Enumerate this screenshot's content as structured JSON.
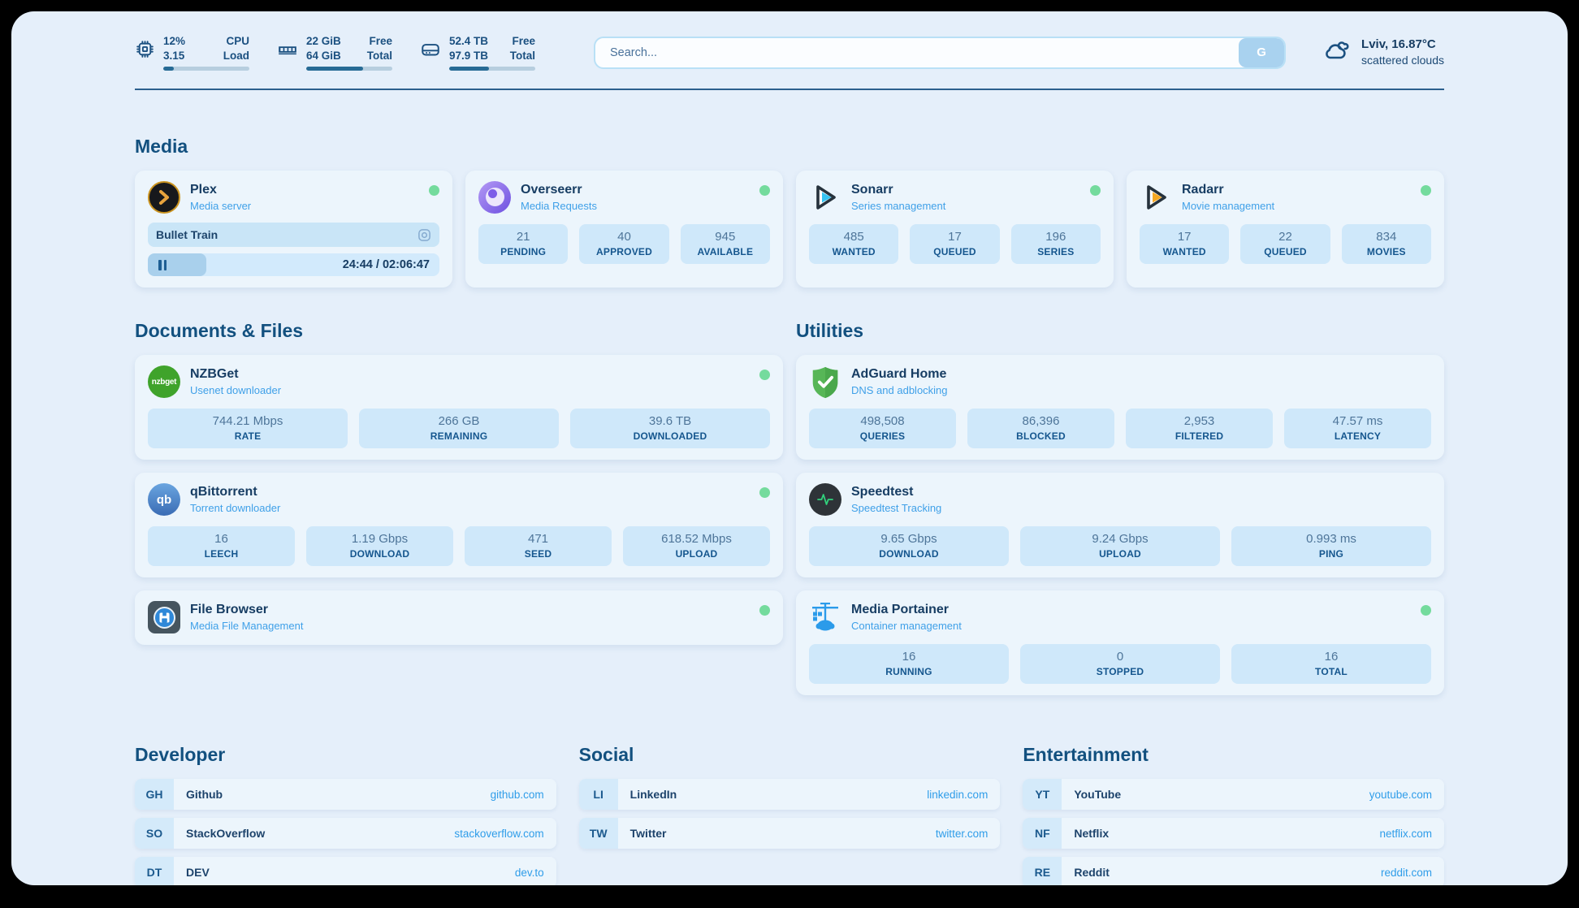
{
  "colors": {
    "status_online": "#74db9d",
    "link": "#2f9de9",
    "accent": "#2c6e9e",
    "plex": "#e8a33d",
    "overseerr": "#7c5ce8",
    "sonarr": "#36c3f1",
    "radarr": "#f6a823",
    "nzbget": "#3fa32b",
    "qbittorrent": "#4a7fc0",
    "adguard": "#57b657",
    "speedtest": "#31d17c",
    "portainer": "#2b9bea"
  },
  "header": {
    "cpu": {
      "values": [
        "12%",
        "3.15"
      ],
      "labels": [
        "CPU",
        "Load"
      ],
      "progress_pct": 12
    },
    "ram": {
      "values": [
        "22 GiB",
        "64 GiB"
      ],
      "labels": [
        "Free",
        "Total"
      ],
      "progress_pct": 66
    },
    "disk": {
      "values": [
        "52.4 TB",
        "97.9 TB"
      ],
      "labels": [
        "Free",
        "Total"
      ],
      "progress_pct": 46
    },
    "search": {
      "placeholder": "Search...",
      "button_label": "G"
    },
    "weather": {
      "location": "Lviv, 16.87°C",
      "condition": "scattered clouds"
    }
  },
  "sections": {
    "media": "Media",
    "documents": "Documents & Files",
    "utilities": "Utilities",
    "developer": "Developer",
    "social": "Social",
    "entertainment": "Entertainment"
  },
  "apps": {
    "plex": {
      "name": "Plex",
      "subtitle": "Media server",
      "status": "online",
      "now_playing": {
        "title": "Bullet Train",
        "time": "24:44 / 02:06:47",
        "progress_pct": 20
      }
    },
    "overseerr": {
      "name": "Overseerr",
      "subtitle": "Media Requests",
      "status": "online",
      "stats": [
        {
          "value": "21",
          "label": "PENDING"
        },
        {
          "value": "40",
          "label": "APPROVED"
        },
        {
          "value": "945",
          "label": "AVAILABLE"
        }
      ]
    },
    "sonarr": {
      "name": "Sonarr",
      "subtitle": "Series management",
      "status": "online",
      "stats": [
        {
          "value": "485",
          "label": "WANTED"
        },
        {
          "value": "17",
          "label": "QUEUED"
        },
        {
          "value": "196",
          "label": "SERIES"
        }
      ]
    },
    "radarr": {
      "name": "Radarr",
      "subtitle": "Movie management",
      "status": "online",
      "stats": [
        {
          "value": "17",
          "label": "WANTED"
        },
        {
          "value": "22",
          "label": "QUEUED"
        },
        {
          "value": "834",
          "label": "MOVIES"
        }
      ]
    },
    "nzbget": {
      "name": "NZBGet",
      "subtitle": "Usenet downloader",
      "status": "online",
      "icon_text": "nzbget",
      "stats": [
        {
          "value": "744.21 Mbps",
          "label": "RATE"
        },
        {
          "value": "266 GB",
          "label": "REMAINING"
        },
        {
          "value": "39.6 TB",
          "label": "DOWNLOADED"
        }
      ]
    },
    "qbittorrent": {
      "name": "qBittorrent",
      "subtitle": "Torrent downloader",
      "status": "online",
      "icon_text": "qb",
      "stats": [
        {
          "value": "16",
          "label": "LEECH"
        },
        {
          "value": "1.19 Gbps",
          "label": "DOWNLOAD"
        },
        {
          "value": "471",
          "label": "SEED"
        },
        {
          "value": "618.52 Mbps",
          "label": "UPLOAD"
        }
      ]
    },
    "filebrowser": {
      "name": "File Browser",
      "subtitle": "Media File Management",
      "status": "online"
    },
    "adguard": {
      "name": "AdGuard Home",
      "subtitle": "DNS and adblocking",
      "stats": [
        {
          "value": "498,508",
          "label": "QUERIES"
        },
        {
          "value": "86,396",
          "label": "BLOCKED"
        },
        {
          "value": "2,953",
          "label": "FILTERED"
        },
        {
          "value": "47.57 ms",
          "label": "LATENCY"
        }
      ]
    },
    "speedtest": {
      "name": "Speedtest",
      "subtitle": "Speedtest Tracking",
      "stats": [
        {
          "value": "9.65 Gbps",
          "label": "DOWNLOAD"
        },
        {
          "value": "9.24 Gbps",
          "label": "UPLOAD"
        },
        {
          "value": "0.993 ms",
          "label": "PING"
        }
      ]
    },
    "portainer": {
      "name": "Media Portainer",
      "subtitle": "Container management",
      "status": "online",
      "stats": [
        {
          "value": "16",
          "label": "RUNNING"
        },
        {
          "value": "0",
          "label": "STOPPED"
        },
        {
          "value": "16",
          "label": "TOTAL"
        }
      ]
    }
  },
  "links": {
    "developer": [
      {
        "abbr": "GH",
        "name": "Github",
        "url": "github.com"
      },
      {
        "abbr": "SO",
        "name": "StackOverflow",
        "url": "stackoverflow.com"
      },
      {
        "abbr": "DT",
        "name": "DEV",
        "url": "dev.to"
      }
    ],
    "social": [
      {
        "abbr": "LI",
        "name": "LinkedIn",
        "url": "linkedin.com"
      },
      {
        "abbr": "TW",
        "name": "Twitter",
        "url": "twitter.com"
      }
    ],
    "entertainment": [
      {
        "abbr": "YT",
        "name": "YouTube",
        "url": "youtube.com"
      },
      {
        "abbr": "NF",
        "name": "Netflix",
        "url": "netflix.com"
      },
      {
        "abbr": "RE",
        "name": "Reddit",
        "url": "reddit.com"
      }
    ]
  }
}
